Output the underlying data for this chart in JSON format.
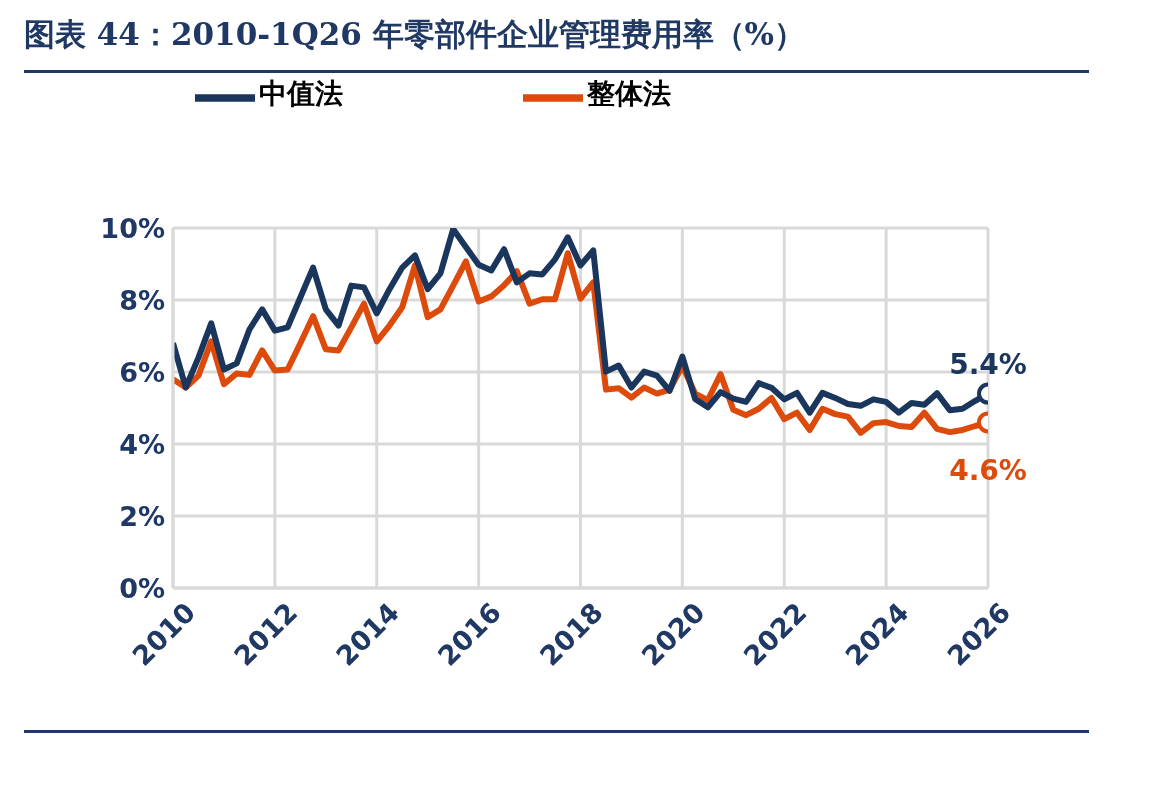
{
  "chart_data": {
    "type": "line",
    "title": "图表 44：2010-1Q26 年零部件企业管理费用率（%）",
    "x": [
      2010,
      2010.25,
      2010.5,
      2010.75,
      2011,
      2011.25,
      2011.5,
      2011.75,
      2012,
      2012.25,
      2012.5,
      2012.75,
      2013,
      2013.25,
      2013.5,
      2013.75,
      2014,
      2014.25,
      2014.5,
      2014.75,
      2015,
      2015.25,
      2015.5,
      2015.75,
      2016,
      2016.25,
      2016.5,
      2016.75,
      2017,
      2017.25,
      2017.5,
      2017.75,
      2018,
      2018.25,
      2018.5,
      2018.75,
      2019,
      2019.25,
      2019.5,
      2019.75,
      2020,
      2020.25,
      2020.5,
      2020.75,
      2021,
      2021.25,
      2021.5,
      2021.75,
      2022,
      2022.25,
      2022.5,
      2022.75,
      2023,
      2023.25,
      2023.5,
      2023.75,
      2024,
      2024.25,
      2024.5,
      2024.75,
      2025,
      2025.25,
      2025.5,
      2025.75,
      2026
    ],
    "series": [
      {
        "name": "整体法",
        "color": "#dc4a0c",
        "values": [
          5.8,
          5.57,
          5.9,
          6.85,
          5.66,
          5.96,
          5.92,
          6.6,
          6.04,
          6.07,
          6.8,
          7.55,
          6.63,
          6.6,
          7.24,
          7.9,
          6.85,
          7.29,
          7.8,
          8.96,
          7.52,
          7.74,
          8.4,
          9.07,
          7.96,
          8.1,
          8.41,
          8.8,
          7.9,
          8.02,
          8.02,
          9.3,
          8.04,
          8.49,
          5.51,
          5.55,
          5.29,
          5.57,
          5.4,
          5.51,
          6.17,
          5.4,
          5.22,
          5.94,
          4.95,
          4.8,
          4.98,
          5.28,
          4.69,
          4.87,
          4.39,
          4.98,
          4.83,
          4.76,
          4.31,
          4.58,
          4.61,
          4.5,
          4.47,
          4.87,
          4.42,
          4.33,
          4.39,
          4.5,
          4.6
        ],
        "value_labels": [
          null,
          null,
          null,
          null,
          null,
          null,
          null,
          null,
          null,
          null,
          null,
          null,
          null,
          null,
          null,
          null,
          null,
          null,
          null,
          null,
          null,
          null,
          null,
          null,
          null,
          null,
          null,
          null,
          null,
          null,
          null,
          null,
          null,
          null,
          null,
          null,
          null,
          null,
          null,
          null,
          null,
          null,
          null,
          null,
          null,
          null,
          null,
          null,
          null,
          null,
          null,
          null,
          null,
          null,
          null,
          null,
          null,
          null,
          null,
          null,
          null,
          null,
          null,
          null,
          "4.6%"
        ]
      },
      {
        "name": "中值法",
        "color": "#1b365d",
        "values": [
          6.8,
          5.57,
          6.4,
          7.35,
          6.07,
          6.24,
          7.18,
          7.74,
          7.15,
          7.24,
          8.07,
          8.9,
          7.74,
          7.29,
          8.4,
          8.35,
          7.63,
          8.3,
          8.9,
          9.24,
          8.3,
          8.74,
          9.97,
          9.47,
          8.98,
          8.82,
          9.41,
          8.49,
          8.74,
          8.71,
          9.13,
          9.74,
          8.96,
          9.38,
          6.01,
          6.18,
          5.57,
          6.01,
          5.9,
          5.48,
          6.43,
          5.25,
          5.02,
          5.44,
          5.26,
          5.17,
          5.69,
          5.56,
          5.24,
          5.42,
          4.87,
          5.42,
          5.28,
          5.11,
          5.06,
          5.24,
          5.17,
          4.87,
          5.14,
          5.09,
          5.41,
          4.94,
          4.98,
          5.2,
          5.4
        ],
        "value_labels": [
          null,
          null,
          null,
          null,
          null,
          null,
          null,
          null,
          null,
          null,
          null,
          null,
          null,
          null,
          null,
          null,
          null,
          null,
          null,
          null,
          null,
          null,
          null,
          null,
          null,
          null,
          null,
          null,
          null,
          null,
          null,
          null,
          null,
          null,
          null,
          null,
          null,
          null,
          null,
          null,
          null,
          null,
          null,
          null,
          null,
          null,
          null,
          null,
          null,
          null,
          null,
          null,
          null,
          null,
          null,
          null,
          null,
          null,
          null,
          null,
          null,
          null,
          null,
          null,
          "5.4%"
        ]
      }
    ],
    "xlim": [
      2010,
      2026
    ],
    "xticks": [
      2010,
      2012,
      2014,
      2016,
      2018,
      2020,
      2022,
      2024,
      2026
    ],
    "ylim": [
      0,
      10
    ],
    "yticks": [
      {
        "value": 0,
        "label": "0%"
      },
      {
        "value": 2,
        "label": "2%"
      },
      {
        "value": 4,
        "label": "4%"
      },
      {
        "value": 6,
        "label": "6%"
      },
      {
        "value": 8,
        "label": "8%"
      },
      {
        "value": 10,
        "label": "10%"
      }
    ],
    "grid": true,
    "legend": "top"
  }
}
